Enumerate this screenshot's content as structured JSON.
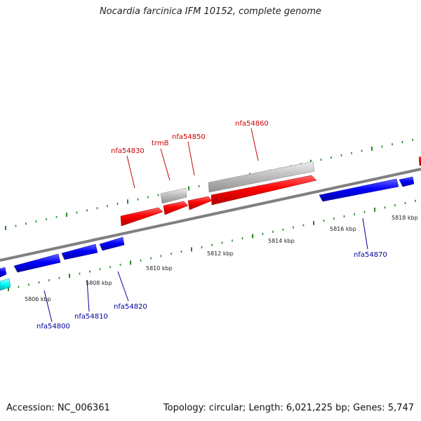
{
  "title": "Nocardia farcinica IFM 10152, complete genome",
  "accession": "Accession: NC_006361",
  "summary": "Topology: circular; Length: 6,021,225 bp; Genes: 5,747",
  "colors": {
    "backbone": "#808080",
    "forward_gene": "#ff0000",
    "reverse_gene": "#0000ff",
    "pseudo_gene": "#c0c0c0",
    "rna_gene": "#00ffff",
    "tick": "#228b22",
    "label_forward": "#cc0000",
    "label_reverse": "#000099"
  },
  "scale_labels": [
    "5806 kbp",
    "5808 kbp",
    "5810 kbp",
    "5812 kbp",
    "5814 kbp",
    "5816 kbp",
    "5818 kbp"
  ],
  "forward_labels": [
    "nfa54830",
    "trmB",
    "nfa54850",
    "nfa54860"
  ],
  "reverse_labels": [
    "nfa54800",
    "nfa54810",
    "nfa54820",
    "nfa54870"
  ]
}
